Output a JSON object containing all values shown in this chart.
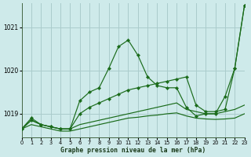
{
  "xlabel": "Graphe pression niveau de la mer (hPa)",
  "bg_color": "#ceeaea",
  "grid_color": "#aacccc",
  "line_color": "#1a6b1a",
  "xlim": [
    0,
    23
  ],
  "ylim": [
    1018.45,
    1021.55
  ],
  "yticks": [
    1019,
    1020,
    1021
  ],
  "ytick_labels": [
    "1019",
    "1020",
    "1021"
  ],
  "xticks": [
    0,
    1,
    2,
    3,
    4,
    5,
    6,
    7,
    8,
    9,
    10,
    11,
    12,
    13,
    14,
    15,
    16,
    17,
    18,
    19,
    20,
    21,
    22,
    23
  ],
  "line_wavy": [
    1018.65,
    1018.9,
    1018.75,
    1018.7,
    1018.65,
    1018.65,
    1019.3,
    1019.5,
    1019.6,
    1020.05,
    1020.55,
    1020.7,
    1020.35,
    1019.85,
    1019.65,
    1019.6,
    1019.6,
    1019.15,
    1018.95,
    1019.0,
    1019.0,
    1019.4,
    1020.05,
    1021.5
  ],
  "line_straight": [
    1018.65,
    1018.85,
    1018.75,
    1018.7,
    1018.65,
    1018.65,
    1019.0,
    1019.15,
    1019.25,
    1019.35,
    1019.45,
    1019.55,
    1019.6,
    1019.65,
    1019.7,
    1019.75,
    1019.8,
    1019.85,
    1019.2,
    1019.05,
    1019.05,
    1019.1,
    1020.05,
    1021.5
  ],
  "line_flat1": [
    1018.65,
    1018.85,
    1018.75,
    1018.7,
    1018.65,
    1018.65,
    1018.75,
    1018.8,
    1018.85,
    1018.9,
    1018.95,
    1019.0,
    1019.05,
    1019.1,
    1019.15,
    1019.2,
    1019.25,
    1019.1,
    1019.05,
    1019.0,
    1019.0,
    1019.05,
    1019.1,
    1019.2
  ],
  "line_flat2": [
    1018.65,
    1018.75,
    1018.7,
    1018.65,
    1018.6,
    1018.6,
    1018.65,
    1018.7,
    1018.75,
    1018.8,
    1018.85,
    1018.9,
    1018.92,
    1018.95,
    1018.97,
    1019.0,
    1019.02,
    1018.95,
    1018.9,
    1018.88,
    1018.87,
    1018.88,
    1018.9,
    1019.0
  ]
}
